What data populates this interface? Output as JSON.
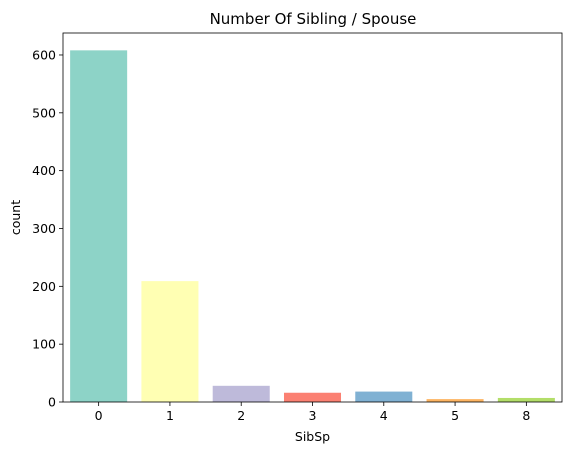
{
  "chart_data": {
    "type": "bar",
    "title": "Number Of Sibling / Spouse",
    "xlabel": "SibSp",
    "ylabel": "count",
    "categories": [
      "0",
      "1",
      "2",
      "3",
      "4",
      "5",
      "8"
    ],
    "values": [
      608,
      209,
      28,
      16,
      18,
      5,
      7
    ],
    "ylim": [
      0,
      638
    ],
    "yticks": [
      0,
      100,
      200,
      300,
      400,
      500,
      600
    ],
    "colors": [
      "#8dd3c7",
      "#ffffb3",
      "#bebada",
      "#fb8072",
      "#80b1d3",
      "#fdb462",
      "#b3de69"
    ],
    "grid": false,
    "legend": "none"
  }
}
